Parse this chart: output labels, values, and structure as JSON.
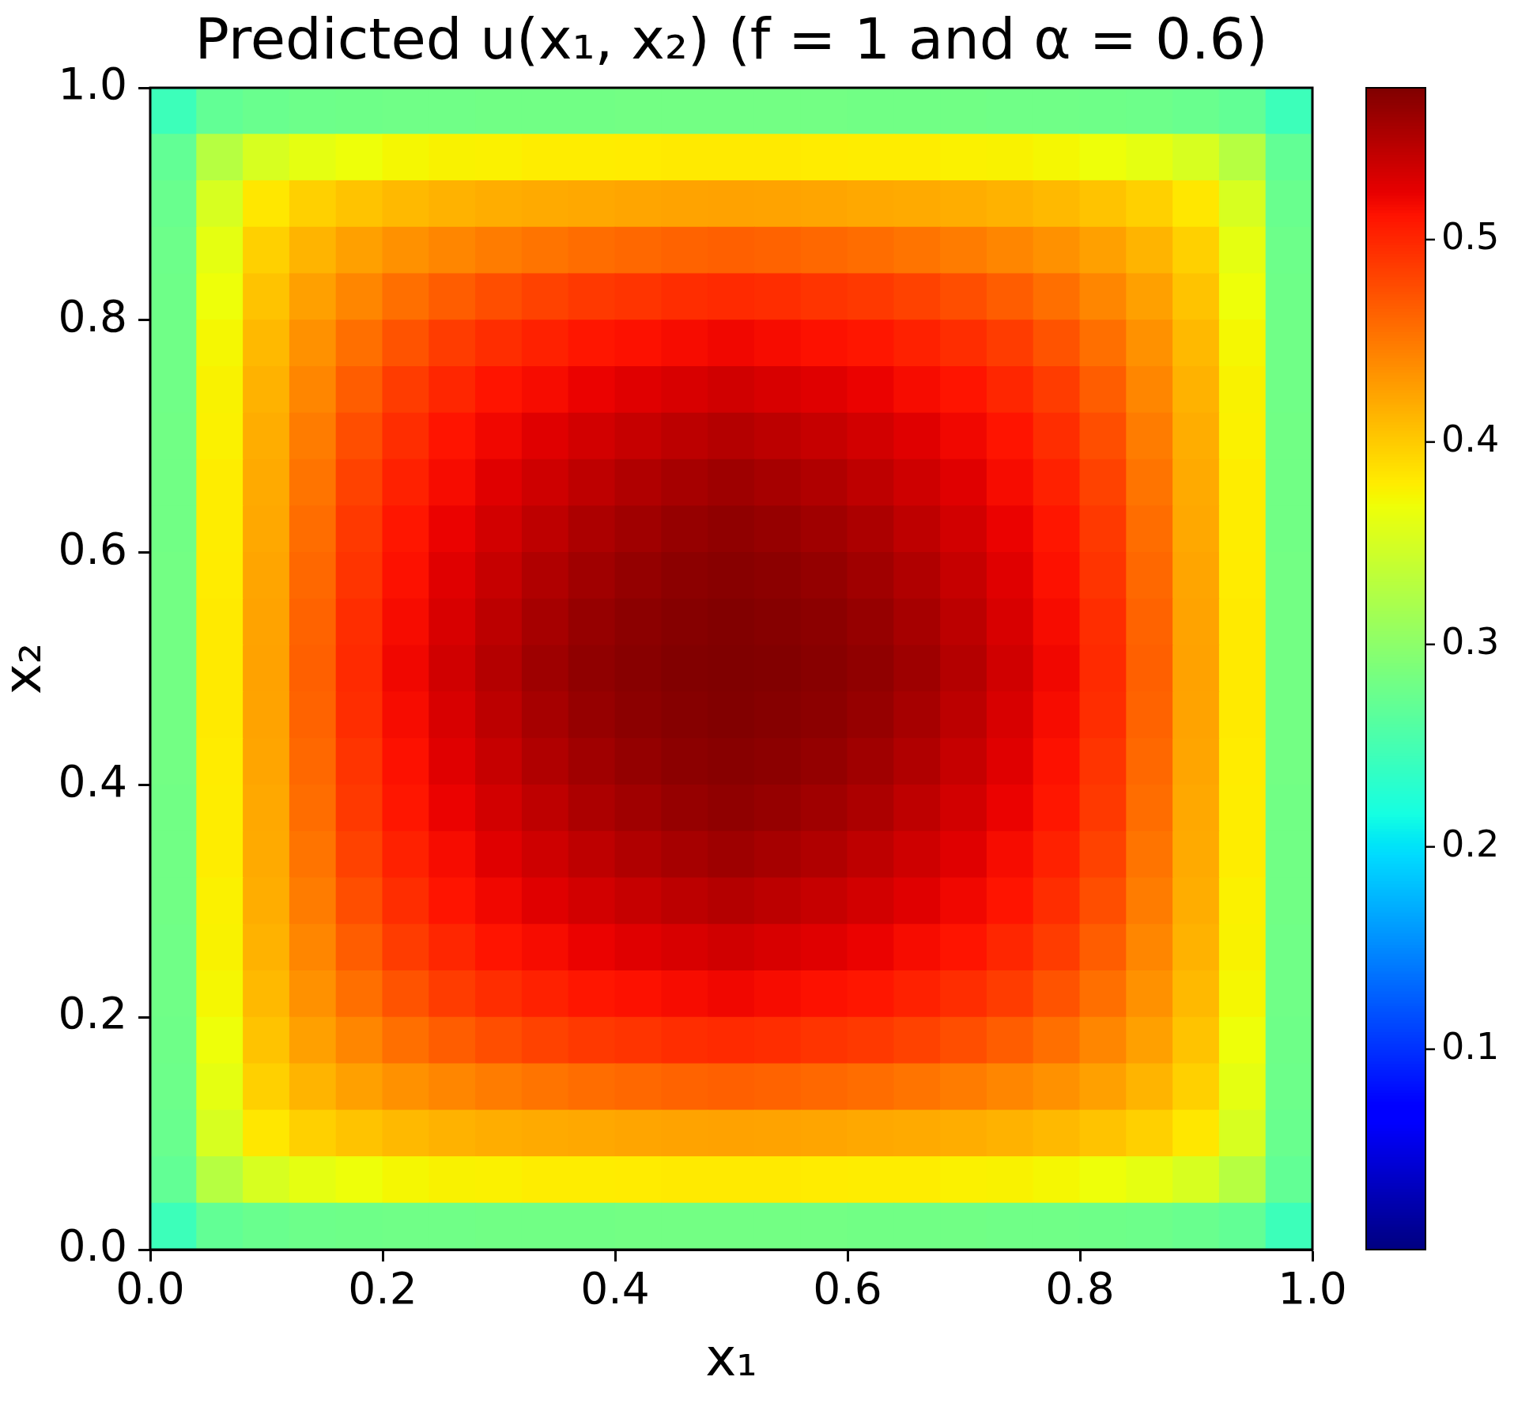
{
  "chart_data": {
    "type": "heatmap",
    "title": "Predicted u(x₁, x₂) (f = 1 and α = 0.6)",
    "xlabel": "x₁",
    "ylabel": "x₂",
    "xlim": [
      0,
      1
    ],
    "ylim": [
      0,
      1
    ],
    "xticks": [
      {
        "value": 0,
        "label": "0.0"
      },
      0.2,
      0.4,
      0.6,
      0.8,
      {
        "value": 1,
        "label": "1.0"
      }
    ],
    "yticks": [
      {
        "value": 0,
        "label": "0.0"
      },
      0.2,
      0.4,
      0.6,
      0.8,
      {
        "value": 1,
        "label": "1.0"
      }
    ],
    "clim": [
      0.001,
      0.575
    ],
    "cticks": [
      0.1,
      0.2,
      0.3,
      0.4,
      0.5
    ],
    "cells": [
      [
        0.244,
        0.27,
        0.275,
        0.278,
        0.279,
        0.28,
        0.28,
        0.281,
        0.281,
        0.281,
        0.282,
        0.282,
        0.282,
        0.282,
        0.282,
        0.281,
        0.281,
        0.281,
        0.28,
        0.28,
        0.279,
        0.278,
        0.275,
        0.27,
        0.244
      ],
      [
        0.27,
        0.329,
        0.352,
        0.362,
        0.368,
        0.373,
        0.376,
        0.377,
        0.379,
        0.379,
        0.38,
        0.381,
        0.381,
        0.381,
        0.38,
        0.379,
        0.379,
        0.377,
        0.376,
        0.373,
        0.368,
        0.362,
        0.352,
        0.329,
        0.27
      ],
      [
        0.275,
        0.352,
        0.383,
        0.397,
        0.405,
        0.411,
        0.415,
        0.418,
        0.42,
        0.421,
        0.423,
        0.424,
        0.425,
        0.424,
        0.423,
        0.421,
        0.42,
        0.418,
        0.415,
        0.411,
        0.405,
        0.397,
        0.383,
        0.352,
        0.275
      ],
      [
        0.278,
        0.362,
        0.397,
        0.414,
        0.426,
        0.435,
        0.442,
        0.448,
        0.453,
        0.457,
        0.46,
        0.463,
        0.465,
        0.463,
        0.46,
        0.457,
        0.453,
        0.448,
        0.442,
        0.435,
        0.426,
        0.414,
        0.397,
        0.362,
        0.278
      ],
      [
        0.279,
        0.368,
        0.405,
        0.426,
        0.442,
        0.456,
        0.467,
        0.476,
        0.483,
        0.489,
        0.492,
        0.496,
        0.498,
        0.496,
        0.492,
        0.489,
        0.483,
        0.476,
        0.467,
        0.456,
        0.442,
        0.426,
        0.405,
        0.368,
        0.279
      ],
      [
        0.28,
        0.373,
        0.411,
        0.435,
        0.456,
        0.473,
        0.487,
        0.496,
        0.503,
        0.51,
        0.513,
        0.516,
        0.519,
        0.516,
        0.513,
        0.51,
        0.503,
        0.496,
        0.487,
        0.473,
        0.456,
        0.435,
        0.411,
        0.373,
        0.28
      ],
      [
        0.28,
        0.376,
        0.415,
        0.442,
        0.467,
        0.487,
        0.5,
        0.511,
        0.516,
        0.522,
        0.527,
        0.531,
        0.535,
        0.531,
        0.527,
        0.522,
        0.516,
        0.511,
        0.5,
        0.487,
        0.467,
        0.442,
        0.415,
        0.376,
        0.28
      ],
      [
        0.281,
        0.377,
        0.418,
        0.448,
        0.476,
        0.496,
        0.511,
        0.519,
        0.527,
        0.534,
        0.54,
        0.545,
        0.549,
        0.545,
        0.54,
        0.534,
        0.527,
        0.519,
        0.511,
        0.496,
        0.476,
        0.448,
        0.418,
        0.377,
        0.281
      ],
      [
        0.281,
        0.379,
        0.42,
        0.453,
        0.483,
        0.503,
        0.516,
        0.527,
        0.536,
        0.544,
        0.551,
        0.556,
        0.56,
        0.556,
        0.551,
        0.544,
        0.536,
        0.527,
        0.516,
        0.503,
        0.483,
        0.453,
        0.42,
        0.379,
        0.281
      ],
      [
        0.281,
        0.379,
        0.421,
        0.457,
        0.489,
        0.51,
        0.522,
        0.534,
        0.544,
        0.553,
        0.559,
        0.564,
        0.567,
        0.564,
        0.559,
        0.553,
        0.544,
        0.534,
        0.522,
        0.51,
        0.489,
        0.457,
        0.421,
        0.379,
        0.281
      ],
      [
        0.282,
        0.38,
        0.423,
        0.46,
        0.492,
        0.513,
        0.527,
        0.54,
        0.551,
        0.559,
        0.565,
        0.569,
        0.571,
        0.569,
        0.565,
        0.559,
        0.551,
        0.54,
        0.527,
        0.513,
        0.492,
        0.46,
        0.423,
        0.38,
        0.282
      ],
      [
        0.282,
        0.381,
        0.424,
        0.463,
        0.496,
        0.516,
        0.531,
        0.545,
        0.556,
        0.564,
        0.569,
        0.572,
        0.574,
        0.572,
        0.569,
        0.564,
        0.556,
        0.545,
        0.531,
        0.516,
        0.496,
        0.463,
        0.424,
        0.381,
        0.282
      ],
      [
        0.282,
        0.381,
        0.425,
        0.465,
        0.498,
        0.519,
        0.535,
        0.549,
        0.56,
        0.567,
        0.571,
        0.574,
        0.575,
        0.574,
        0.571,
        0.567,
        0.56,
        0.549,
        0.535,
        0.519,
        0.498,
        0.465,
        0.425,
        0.381,
        0.282
      ],
      [
        0.282,
        0.381,
        0.424,
        0.463,
        0.496,
        0.516,
        0.531,
        0.545,
        0.556,
        0.564,
        0.569,
        0.572,
        0.574,
        0.572,
        0.569,
        0.564,
        0.556,
        0.545,
        0.531,
        0.516,
        0.496,
        0.463,
        0.424,
        0.381,
        0.282
      ],
      [
        0.282,
        0.38,
        0.423,
        0.46,
        0.492,
        0.513,
        0.527,
        0.54,
        0.551,
        0.559,
        0.565,
        0.569,
        0.571,
        0.569,
        0.565,
        0.559,
        0.551,
        0.54,
        0.527,
        0.513,
        0.492,
        0.46,
        0.423,
        0.38,
        0.282
      ],
      [
        0.281,
        0.379,
        0.421,
        0.457,
        0.489,
        0.51,
        0.522,
        0.534,
        0.544,
        0.553,
        0.559,
        0.564,
        0.567,
        0.564,
        0.559,
        0.553,
        0.544,
        0.534,
        0.522,
        0.51,
        0.489,
        0.457,
        0.421,
        0.379,
        0.281
      ],
      [
        0.281,
        0.379,
        0.42,
        0.453,
        0.483,
        0.503,
        0.516,
        0.527,
        0.536,
        0.544,
        0.551,
        0.556,
        0.56,
        0.556,
        0.551,
        0.544,
        0.536,
        0.527,
        0.516,
        0.503,
        0.483,
        0.453,
        0.42,
        0.379,
        0.281
      ],
      [
        0.281,
        0.377,
        0.418,
        0.448,
        0.476,
        0.496,
        0.511,
        0.519,
        0.527,
        0.534,
        0.54,
        0.545,
        0.549,
        0.545,
        0.54,
        0.534,
        0.527,
        0.519,
        0.511,
        0.496,
        0.476,
        0.448,
        0.418,
        0.377,
        0.281
      ],
      [
        0.28,
        0.376,
        0.415,
        0.442,
        0.467,
        0.487,
        0.5,
        0.511,
        0.516,
        0.522,
        0.527,
        0.531,
        0.535,
        0.531,
        0.527,
        0.522,
        0.516,
        0.511,
        0.5,
        0.487,
        0.467,
        0.442,
        0.415,
        0.376,
        0.28
      ],
      [
        0.28,
        0.373,
        0.411,
        0.435,
        0.456,
        0.473,
        0.487,
        0.496,
        0.503,
        0.51,
        0.513,
        0.516,
        0.519,
        0.516,
        0.513,
        0.51,
        0.503,
        0.496,
        0.487,
        0.473,
        0.456,
        0.435,
        0.411,
        0.373,
        0.28
      ],
      [
        0.279,
        0.368,
        0.405,
        0.426,
        0.442,
        0.456,
        0.467,
        0.476,
        0.483,
        0.489,
        0.492,
        0.496,
        0.498,
        0.496,
        0.492,
        0.489,
        0.483,
        0.476,
        0.467,
        0.456,
        0.442,
        0.426,
        0.405,
        0.368,
        0.279
      ],
      [
        0.278,
        0.362,
        0.397,
        0.414,
        0.426,
        0.435,
        0.442,
        0.448,
        0.453,
        0.457,
        0.46,
        0.463,
        0.465,
        0.463,
        0.46,
        0.457,
        0.453,
        0.448,
        0.442,
        0.435,
        0.426,
        0.414,
        0.397,
        0.362,
        0.278
      ],
      [
        0.275,
        0.352,
        0.383,
        0.397,
        0.405,
        0.411,
        0.415,
        0.418,
        0.42,
        0.421,
        0.423,
        0.424,
        0.425,
        0.424,
        0.423,
        0.421,
        0.42,
        0.418,
        0.415,
        0.411,
        0.405,
        0.397,
        0.383,
        0.352,
        0.275
      ],
      [
        0.27,
        0.329,
        0.352,
        0.362,
        0.368,
        0.373,
        0.376,
        0.377,
        0.379,
        0.379,
        0.38,
        0.381,
        0.381,
        0.381,
        0.38,
        0.379,
        0.379,
        0.377,
        0.376,
        0.373,
        0.368,
        0.362,
        0.352,
        0.329,
        0.27
      ],
      [
        0.244,
        0.27,
        0.275,
        0.278,
        0.279,
        0.28,
        0.28,
        0.281,
        0.281,
        0.281,
        0.282,
        0.282,
        0.282,
        0.282,
        0.282,
        0.281,
        0.281,
        0.281,
        0.28,
        0.28,
        0.279,
        0.278,
        0.275,
        0.27,
        0.244
      ]
    ]
  }
}
